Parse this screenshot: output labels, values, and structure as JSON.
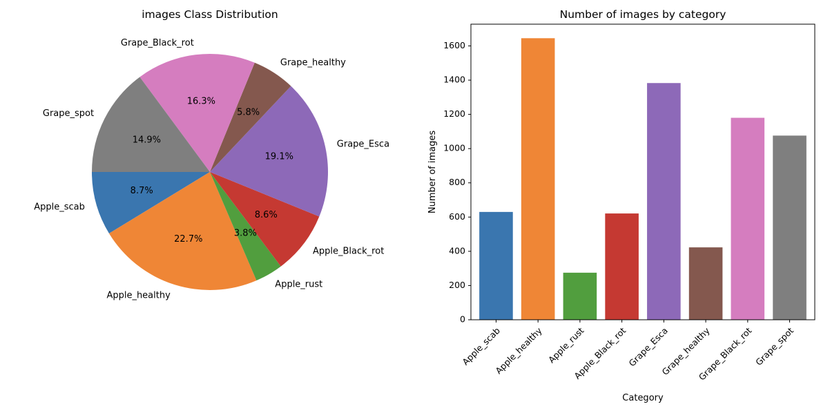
{
  "chart_data": [
    {
      "type": "pie",
      "title": "images Class Distribution",
      "labels": [
        "Apple_scab",
        "Apple_healthy",
        "Apple_rust",
        "Apple_Black_rot",
        "Grape_Esca",
        "Grape_healthy",
        "Grape_Black_rot",
        "Grape_spot"
      ],
      "percent_labels": [
        "8.7%",
        "22.7%",
        "3.8%",
        "8.6%",
        "19.1%",
        "5.8%",
        "16.3%",
        "14.9%"
      ],
      "values": [
        630,
        1645,
        275,
        621,
        1383,
        423,
        1180,
        1076
      ],
      "colors": [
        "#3a76af",
        "#ef8636",
        "#519e3e",
        "#c53932",
        "#8d69b8",
        "#84584e",
        "#d57dbf",
        "#7f7f7f"
      ],
      "start_angle_deg": 180,
      "direction": "counterclockwise"
    },
    {
      "type": "bar",
      "title": "Number of images by category",
      "xlabel": "Category",
      "ylabel": "Number of images",
      "categories": [
        "Apple_scab",
        "Apple_healthy",
        "Apple_rust",
        "Apple_Black_rot",
        "Grape_Esca",
        "Grape_healthy",
        "Grape_Black_rot",
        "Grape_spot"
      ],
      "values": [
        630,
        1645,
        275,
        621,
        1383,
        423,
        1180,
        1076
      ],
      "colors": [
        "#3a76af",
        "#ef8636",
        "#519e3e",
        "#c53932",
        "#8d69b8",
        "#84584e",
        "#d57dbf",
        "#7f7f7f"
      ],
      "ylim": [
        0,
        1727
      ],
      "yticks": [
        0,
        200,
        400,
        600,
        800,
        1000,
        1200,
        1400,
        1600
      ],
      "grid": false
    }
  ]
}
